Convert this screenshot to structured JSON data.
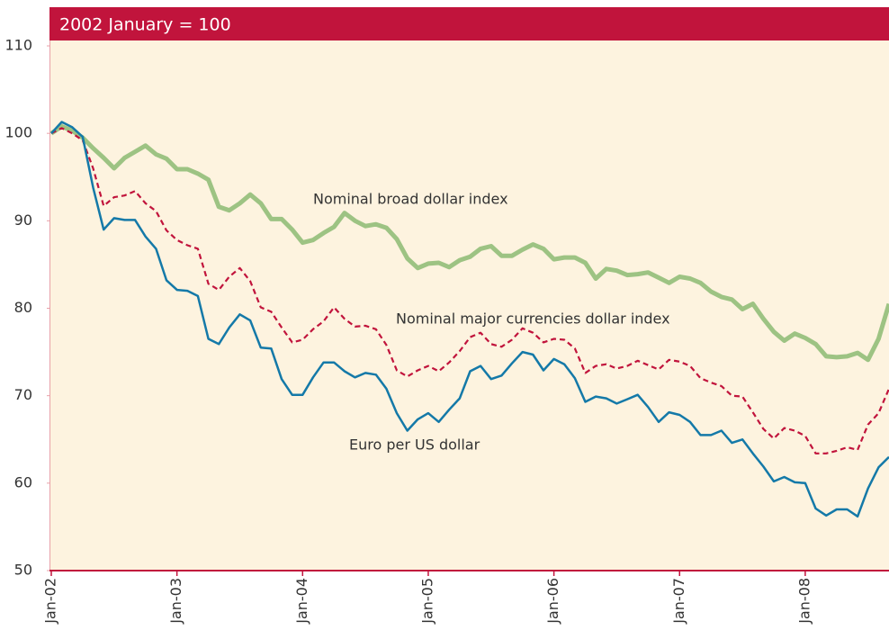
{
  "chart_data": {
    "type": "line",
    "title": "2002 January = 100",
    "categories": [
      "Jan-02",
      null,
      null,
      null,
      null,
      null,
      null,
      null,
      null,
      null,
      null,
      null,
      "Jan-03",
      null,
      null,
      null,
      null,
      null,
      null,
      null,
      null,
      null,
      null,
      null,
      "Jan-04",
      null,
      null,
      null,
      null,
      null,
      null,
      null,
      null,
      null,
      null,
      null,
      "Jan-05",
      null,
      null,
      null,
      null,
      null,
      null,
      null,
      null,
      null,
      null,
      null,
      "Jan-06",
      null,
      null,
      null,
      null,
      null,
      null,
      null,
      null,
      null,
      null,
      null,
      "Jan-07",
      null,
      null,
      null,
      null,
      null,
      null,
      null,
      null,
      null,
      null,
      null,
      "Jan-08",
      null,
      null,
      null,
      null,
      null,
      null,
      null,
      null
    ],
    "series": [
      {
        "name": "Nominal broad dollar index",
        "color": "#9dc383",
        "style": "solid",
        "values": [
          100,
          100.8,
          100.3,
          99.5,
          98.3,
          97.2,
          96,
          97.2,
          97.9,
          98.6,
          97.6,
          97.1,
          95.9,
          95.9,
          95.4,
          94.7,
          91.6,
          91.2,
          92,
          93,
          92,
          90.2,
          90.2,
          89,
          87.5,
          87.8,
          88.6,
          89.3,
          90.9,
          90,
          89.4,
          89.6,
          89.2,
          87.9,
          85.7,
          84.6,
          85.1,
          85.2,
          84.7,
          85.5,
          85.9,
          86.8,
          87.1,
          86,
          86,
          86.7,
          87.3,
          86.8,
          85.6,
          85.8,
          85.8,
          85.2,
          83.4,
          84.5,
          84.3,
          83.8,
          83.9,
          84.1,
          83.5,
          82.9,
          83.6,
          83.4,
          82.9,
          81.9,
          81.3,
          81,
          79.9,
          80.5,
          78.8,
          77.3,
          76.3,
          77.1,
          76.6,
          75.9,
          74.5,
          74.4,
          74.5,
          74.9,
          74.1,
          76.5,
          80.5
        ]
      },
      {
        "name": "Nominal major currencies dollar index",
        "color": "#c1143c",
        "style": "dashed",
        "values": [
          100,
          100.6,
          100,
          99.2,
          96,
          91.7,
          92.7,
          92.9,
          93.4,
          92,
          91.1,
          88.9,
          87.8,
          87.2,
          86.8,
          82.8,
          82.1,
          83.6,
          84.6,
          83.1,
          80.1,
          79.6,
          77.8,
          76.1,
          76.4,
          77.6,
          78.5,
          80.1,
          78.8,
          77.9,
          78,
          77.6,
          75.8,
          72.9,
          72.2,
          72.9,
          73.4,
          72.8,
          73.8,
          75.1,
          76.7,
          77.2,
          75.9,
          75.6,
          76.4,
          77.7,
          77.2,
          76.1,
          76.5,
          76.4,
          75.4,
          72.6,
          73.4,
          73.6,
          73.1,
          73.4,
          74,
          73.5,
          73,
          74.1,
          73.9,
          73.4,
          72,
          71.5,
          71.1,
          70,
          69.9,
          68.1,
          66.2,
          65.1,
          66.3,
          66,
          65.4,
          63.4,
          63.4,
          63.7,
          64.1,
          63.8,
          66.7,
          68,
          70.8
        ]
      },
      {
        "name": "Euro per US dollar",
        "color": "#1479a8",
        "style": "solid",
        "values": [
          100,
          101.3,
          100.7,
          99.6,
          93.8,
          89,
          90.3,
          90.1,
          90.1,
          88.2,
          86.8,
          83.2,
          82.1,
          82,
          81.4,
          76.5,
          75.9,
          77.8,
          79.3,
          78.6,
          75.5,
          75.4,
          71.9,
          70.1,
          70.1,
          72.1,
          73.8,
          73.8,
          72.8,
          72.1,
          72.6,
          72.4,
          70.8,
          68,
          66,
          67.3,
          68,
          67,
          68.4,
          69.7,
          72.8,
          73.4,
          71.9,
          72.3,
          73.7,
          75,
          74.7,
          72.9,
          74.2,
          73.6,
          72,
          69.3,
          69.9,
          69.7,
          69.1,
          69.6,
          70.1,
          68.7,
          67,
          68.1,
          67.8,
          67,
          65.5,
          65.5,
          66,
          64.6,
          65,
          63.4,
          61.9,
          60.2,
          60.7,
          60.1,
          60,
          57.1,
          56.3,
          57,
          57,
          56.2,
          59.4,
          61.8,
          63
        ]
      }
    ],
    "ylim": [
      50,
      110
    ],
    "yticks": [
      50,
      60,
      70,
      80,
      90,
      100,
      110
    ],
    "grid": false
  }
}
